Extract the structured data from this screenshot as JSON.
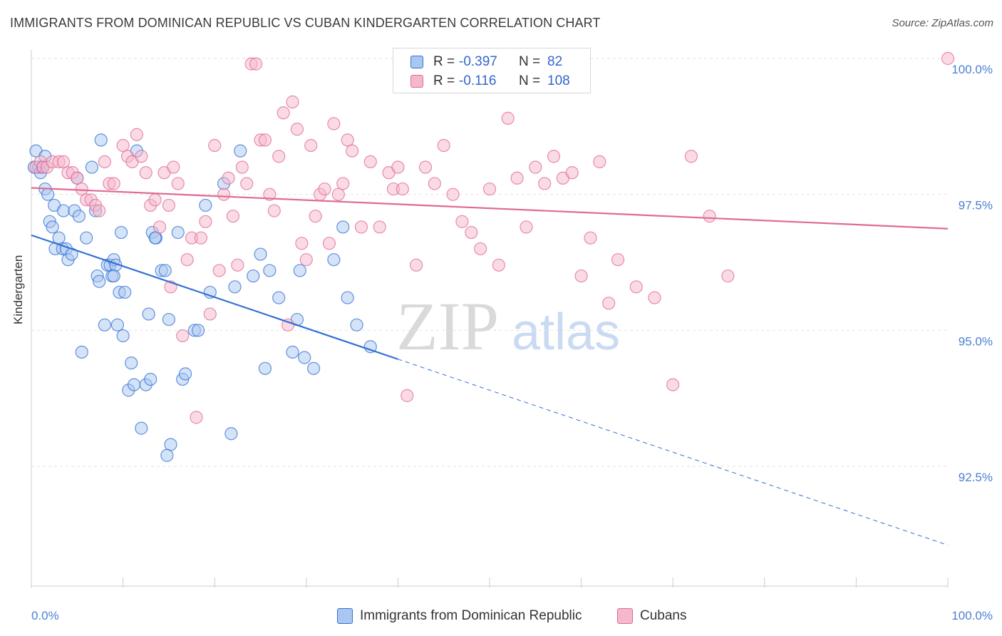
{
  "title": "IMMIGRANTS FROM DOMINICAN REPUBLIC VS CUBAN KINDERGARTEN CORRELATION CHART",
  "source": "Source: ZipAtlas.com",
  "watermark": {
    "zip": "ZIP",
    "atlas": "atlas"
  },
  "colors": {
    "blue": "#3370d4",
    "blue_fill": "#a9c7f0",
    "pink": "#e06a95",
    "pink_fill": "#f5b8cb",
    "grid": "#e3e3e3",
    "tick_text": "#4a7fd1",
    "axis": "#cccccc"
  },
  "legend": {
    "rows": [
      {
        "r_label": "R =",
        "r_value": "-0.397",
        "n_label": "N =",
        "n_value": "82"
      },
      {
        "r_label": "R =",
        "r_value": "-0.116",
        "n_label": "N =",
        "n_value": "108"
      }
    ]
  },
  "chart_data": {
    "type": "scatter",
    "title": "IMMIGRANTS FROM DOMINICAN REPUBLIC VS CUBAN KINDERGARTEN CORRELATION CHART",
    "xlabel": "",
    "ylabel": "Kindergarten",
    "xlim": [
      0,
      100
    ],
    "ylim": [
      90.0,
      100.4
    ],
    "x_tick_labels": [
      "0.0%",
      "100.0%"
    ],
    "y_ticks": [
      92.5,
      95.0,
      97.5,
      100.0
    ],
    "y_tick_labels": [
      "92.5%",
      "95.0%",
      "97.5%",
      "100.0%"
    ],
    "grid": true,
    "legend_position": "top-center",
    "series": [
      {
        "name": "Immigrants from Dominican Republic",
        "color": "#3370d4",
        "r": -0.397,
        "n": 82,
        "trend": {
          "x": [
            0,
            40
          ],
          "y": [
            96.75,
            94.47
          ],
          "dashed_to": [
            100,
            91.05
          ]
        },
        "points": [
          [
            0.3,
            98.0
          ],
          [
            0.5,
            98.3
          ],
          [
            0.8,
            98.0
          ],
          [
            1.0,
            97.9
          ],
          [
            1.2,
            98.0
          ],
          [
            1.5,
            97.6
          ],
          [
            1.8,
            97.5
          ],
          [
            2.0,
            97.0
          ],
          [
            2.3,
            96.9
          ],
          [
            2.5,
            97.3
          ],
          [
            2.6,
            96.5
          ],
          [
            3.0,
            96.7
          ],
          [
            3.4,
            96.5
          ],
          [
            3.5,
            97.2
          ],
          [
            3.8,
            96.5
          ],
          [
            4.0,
            96.3
          ],
          [
            4.4,
            96.4
          ],
          [
            4.7,
            97.2
          ],
          [
            5.0,
            97.8
          ],
          [
            5.2,
            97.1
          ],
          [
            6.0,
            96.7
          ],
          [
            5.5,
            94.6
          ],
          [
            6.6,
            98.0
          ],
          [
            7.0,
            97.2
          ],
          [
            7.2,
            96.0
          ],
          [
            7.4,
            95.9
          ],
          [
            7.6,
            98.5
          ],
          [
            8.0,
            95.1
          ],
          [
            8.3,
            96.2
          ],
          [
            8.6,
            96.2
          ],
          [
            8.8,
            96.0
          ],
          [
            9.0,
            96.3
          ],
          [
            9.2,
            96.2
          ],
          [
            9.4,
            95.1
          ],
          [
            9.6,
            95.7
          ],
          [
            9.8,
            96.8
          ],
          [
            10.0,
            94.9
          ],
          [
            10.2,
            95.7
          ],
          [
            10.6,
            93.9
          ],
          [
            10.9,
            94.4
          ],
          [
            11.2,
            94.0
          ],
          [
            11.5,
            98.3
          ],
          [
            12.0,
            93.2
          ],
          [
            12.5,
            94.0
          ],
          [
            12.8,
            95.3
          ],
          [
            13.0,
            94.1
          ],
          [
            13.2,
            96.8
          ],
          [
            13.6,
            96.7
          ],
          [
            14.2,
            96.1
          ],
          [
            14.6,
            96.1
          ],
          [
            15.0,
            95.2
          ],
          [
            15.2,
            92.9
          ],
          [
            14.8,
            92.7
          ],
          [
            16.0,
            96.8
          ],
          [
            16.5,
            94.1
          ],
          [
            16.8,
            94.2
          ],
          [
            17.8,
            95.0
          ],
          [
            18.2,
            95.0
          ],
          [
            19.0,
            97.3
          ],
          [
            19.5,
            95.7
          ],
          [
            21.0,
            97.7
          ],
          [
            21.8,
            93.1
          ],
          [
            22.2,
            95.8
          ],
          [
            22.8,
            98.3
          ],
          [
            24.2,
            96.0
          ],
          [
            25.0,
            96.4
          ],
          [
            25.5,
            94.3
          ],
          [
            26.0,
            96.1
          ],
          [
            27.0,
            95.6
          ],
          [
            28.5,
            94.6
          ],
          [
            29.0,
            95.2
          ],
          [
            29.3,
            96.1
          ],
          [
            29.8,
            94.5
          ],
          [
            30.8,
            94.3
          ],
          [
            33.0,
            96.3
          ],
          [
            34.0,
            96.9
          ],
          [
            34.5,
            95.6
          ],
          [
            35.5,
            95.1
          ],
          [
            37.0,
            94.7
          ],
          [
            1.5,
            98.2
          ],
          [
            9.0,
            96.0
          ],
          [
            13.5,
            96.7
          ]
        ]
      },
      {
        "name": "Cubans",
        "color": "#e06a95",
        "r": -0.116,
        "n": 108,
        "trend": {
          "x": [
            0,
            100
          ],
          "y": [
            97.62,
            96.87
          ]
        },
        "points": [
          [
            0.5,
            98.0
          ],
          [
            1.0,
            98.1
          ],
          [
            1.3,
            98.0
          ],
          [
            1.7,
            98.0
          ],
          [
            2.3,
            98.1
          ],
          [
            3.0,
            98.1
          ],
          [
            3.5,
            98.1
          ],
          [
            4.0,
            97.9
          ],
          [
            4.5,
            97.9
          ],
          [
            5.0,
            97.8
          ],
          [
            5.5,
            97.6
          ],
          [
            6.0,
            97.4
          ],
          [
            6.5,
            97.4
          ],
          [
            7.0,
            97.3
          ],
          [
            7.4,
            97.2
          ],
          [
            8.0,
            98.1
          ],
          [
            8.5,
            97.7
          ],
          [
            9.0,
            97.7
          ],
          [
            10.0,
            98.4
          ],
          [
            10.5,
            98.2
          ],
          [
            11.0,
            98.1
          ],
          [
            11.5,
            98.6
          ],
          [
            12.0,
            98.2
          ],
          [
            12.5,
            97.9
          ],
          [
            13.0,
            97.3
          ],
          [
            13.5,
            97.4
          ],
          [
            14.0,
            96.9
          ],
          [
            14.5,
            97.9
          ],
          [
            15.0,
            97.3
          ],
          [
            15.2,
            95.8
          ],
          [
            15.5,
            98.0
          ],
          [
            16.0,
            97.7
          ],
          [
            16.5,
            94.9
          ],
          [
            17.0,
            96.3
          ],
          [
            17.5,
            96.7
          ],
          [
            18.0,
            93.4
          ],
          [
            18.5,
            96.7
          ],
          [
            19.0,
            97.0
          ],
          [
            19.5,
            95.3
          ],
          [
            20.0,
            98.4
          ],
          [
            20.5,
            96.1
          ],
          [
            21.0,
            97.5
          ],
          [
            21.5,
            97.8
          ],
          [
            22.0,
            97.1
          ],
          [
            22.5,
            96.2
          ],
          [
            23.0,
            98.0
          ],
          [
            23.5,
            97.7
          ],
          [
            24.0,
            99.9
          ],
          [
            24.5,
            99.9
          ],
          [
            25.0,
            98.5
          ],
          [
            25.5,
            98.5
          ],
          [
            26.0,
            97.5
          ],
          [
            26.5,
            97.2
          ],
          [
            27.0,
            98.2
          ],
          [
            27.5,
            99.0
          ],
          [
            28.0,
            95.1
          ],
          [
            28.5,
            99.2
          ],
          [
            29.0,
            98.7
          ],
          [
            29.5,
            96.6
          ],
          [
            30.0,
            96.3
          ],
          [
            30.5,
            98.4
          ],
          [
            31.0,
            97.1
          ],
          [
            31.5,
            97.5
          ],
          [
            32.0,
            97.6
          ],
          [
            32.5,
            96.6
          ],
          [
            33.0,
            98.8
          ],
          [
            33.5,
            97.5
          ],
          [
            34.0,
            97.7
          ],
          [
            34.5,
            98.5
          ],
          [
            35.0,
            98.3
          ],
          [
            36.0,
            96.9
          ],
          [
            37.0,
            98.1
          ],
          [
            38.0,
            96.9
          ],
          [
            39.0,
            97.9
          ],
          [
            39.5,
            97.6
          ],
          [
            40.0,
            98.0
          ],
          [
            40.5,
            97.6
          ],
          [
            41.0,
            93.8
          ],
          [
            42.0,
            96.2
          ],
          [
            43.0,
            98.0
          ],
          [
            44.0,
            97.7
          ],
          [
            45.0,
            98.4
          ],
          [
            46.0,
            97.5
          ],
          [
            47.0,
            97.0
          ],
          [
            48.0,
            96.8
          ],
          [
            49.0,
            96.5
          ],
          [
            50.0,
            97.6
          ],
          [
            51.0,
            96.2
          ],
          [
            52.0,
            98.9
          ],
          [
            53.0,
            97.8
          ],
          [
            54.0,
            96.9
          ],
          [
            55.0,
            98.0
          ],
          [
            56.0,
            97.7
          ],
          [
            57.0,
            98.2
          ],
          [
            58.0,
            97.8
          ],
          [
            59.0,
            97.9
          ],
          [
            60.0,
            96.0
          ],
          [
            61.0,
            96.7
          ],
          [
            62.0,
            98.1
          ],
          [
            63.0,
            95.5
          ],
          [
            64.0,
            96.3
          ],
          [
            66.0,
            95.8
          ],
          [
            68.0,
            95.6
          ],
          [
            70.0,
            94.0
          ],
          [
            72.0,
            98.2
          ],
          [
            74.0,
            97.1
          ],
          [
            76.0,
            96.0
          ],
          [
            100.0,
            100.0
          ]
        ]
      }
    ]
  },
  "bottom_legend": [
    "Immigrants from Dominican Republic",
    "Cubans"
  ]
}
